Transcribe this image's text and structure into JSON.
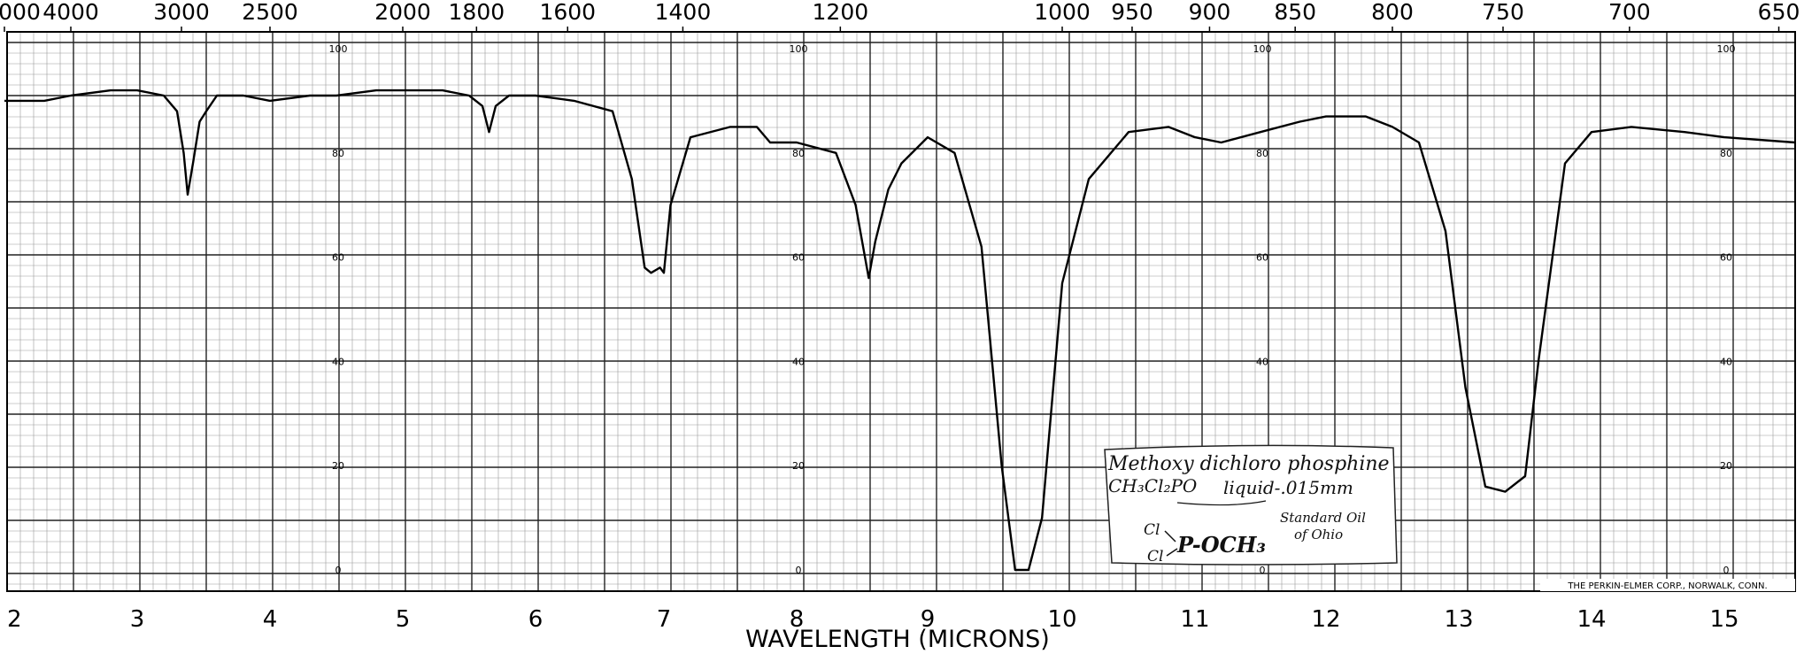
{
  "chart_data": {
    "type": "line",
    "xlabel": "WAVELENGTH (MICRONS)",
    "x_ticks": [
      "2",
      "3",
      "4",
      "5",
      "6",
      "7",
      "8",
      "9",
      "10",
      "11",
      "12",
      "13",
      "14",
      "15"
    ],
    "x2_ticks": [
      "000",
      "4000",
      "3000",
      "2500",
      "2000",
      "1800",
      "1600",
      "1400",
      "1200",
      "1000",
      "950",
      "900",
      "850",
      "800",
      "750",
      "700",
      "650"
    ],
    "y_ticks": [
      "100",
      "80",
      "60",
      "40",
      "20",
      "0"
    ],
    "ylim": [
      0,
      100
    ],
    "xlim": [
      2,
      15.5
    ],
    "grid": true,
    "series": [
      {
        "x": [
          2.0,
          2.3,
          2.5,
          2.8,
          3.0,
          3.2,
          3.3,
          3.35,
          3.38,
          3.42,
          3.47,
          3.52,
          3.6,
          3.8,
          4.0,
          4.3,
          4.5,
          4.8,
          5.0,
          5.3,
          5.5,
          5.6,
          5.65,
          5.7,
          5.8,
          6.0,
          6.3,
          6.6,
          6.75,
          6.85,
          6.9,
          6.97,
          7.0,
          7.05,
          7.2,
          7.5,
          7.7,
          7.8,
          8.0,
          8.3,
          8.45,
          8.55,
          8.6,
          8.7,
          8.8,
          9.0,
          9.2,
          9.4,
          9.55,
          9.65,
          9.75,
          9.85,
          10.0,
          10.2,
          10.5,
          10.8,
          11.0,
          11.2,
          11.5,
          11.8,
          12.0,
          12.3,
          12.5,
          12.7,
          12.9,
          13.05,
          13.2,
          13.35,
          13.5,
          13.6,
          13.8,
          14.0,
          14.3,
          14.7,
          15.0,
          15.5
        ],
        "values": [
          90,
          90,
          91,
          92,
          92,
          91,
          88,
          80,
          72,
          78,
          86,
          88,
          91,
          91,
          90,
          91,
          91,
          92,
          92,
          92,
          91,
          89,
          84,
          89,
          91,
          91,
          90,
          88,
          75,
          58,
          57,
          58,
          57,
          70,
          83,
          85,
          85,
          82,
          82,
          80,
          70,
          56,
          63,
          73,
          78,
          83,
          80,
          62,
          20,
          0,
          0,
          10,
          55,
          75,
          84,
          85,
          83,
          82,
          84,
          86,
          87,
          87,
          85,
          82,
          65,
          35,
          16,
          15,
          18,
          40,
          78,
          84,
          85,
          84,
          83,
          82
        ]
      }
    ]
  },
  "annotation": {
    "line1": "Methoxy dichloro phosphine",
    "formula": "CH₃Cl₂PO",
    "sample": "liquid-.015mm",
    "source_line1": "Standard Oil",
    "source_line2": "of Ohio",
    "struct_cl_top": "Cl",
    "struct_cl_bottom": "Cl",
    "struct_group": "P-OCH₃"
  },
  "footer_credit": "THE PERKIN-ELMER CORP., NORWALK, CONN.",
  "colors": {
    "ink": "#000000",
    "grid": "#3a3a3a",
    "paper": "#ffffff"
  }
}
